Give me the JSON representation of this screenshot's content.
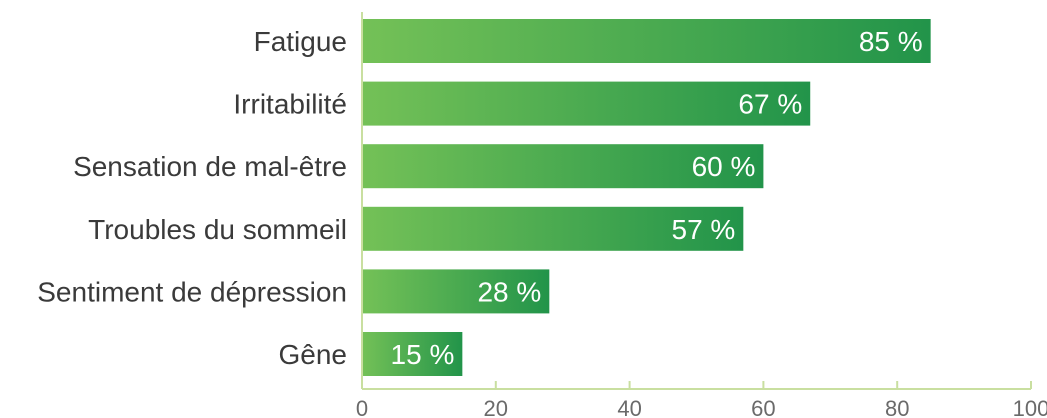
{
  "chart_data": {
    "type": "bar",
    "orientation": "horizontal",
    "categories": [
      "Fatigue",
      "Irritabilité",
      "Sensation de mal-être",
      "Troubles du sommeil",
      "Sentiment de dépression",
      "Gêne"
    ],
    "values": [
      85,
      67,
      60,
      57,
      28,
      15
    ],
    "value_labels": [
      "85 %",
      "67 %",
      "60 %",
      "57 %",
      "28 %",
      "15 %"
    ],
    "xlim": [
      0,
      100
    ],
    "x_ticks": [
      0,
      20,
      40,
      60,
      80,
      100
    ],
    "x_tick_labels": [
      "0",
      "20",
      "40",
      "60",
      "80",
      "100"
    ],
    "grid": false,
    "colors": {
      "bar_start": "#74c157",
      "bar_end": "#22944a",
      "axis": "#c9dfa0",
      "label": "#3a3a3a"
    }
  }
}
